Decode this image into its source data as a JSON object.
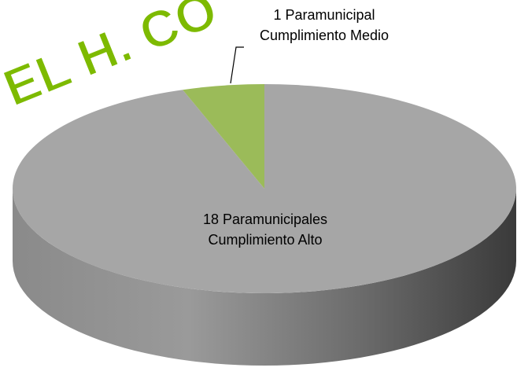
{
  "chart_data": {
    "type": "pie3d",
    "categories": [
      "Cumplimiento Alto",
      "Cumplimiento Medio"
    ],
    "values": [
      18,
      1
    ],
    "value_labels": [
      "18 Paramunicipales",
      "1 Paramunicipal"
    ],
    "colors": [
      "#a6a6a6",
      "#9bbb59"
    ],
    "annotations": [
      "EL H. CO"
    ]
  }
}
